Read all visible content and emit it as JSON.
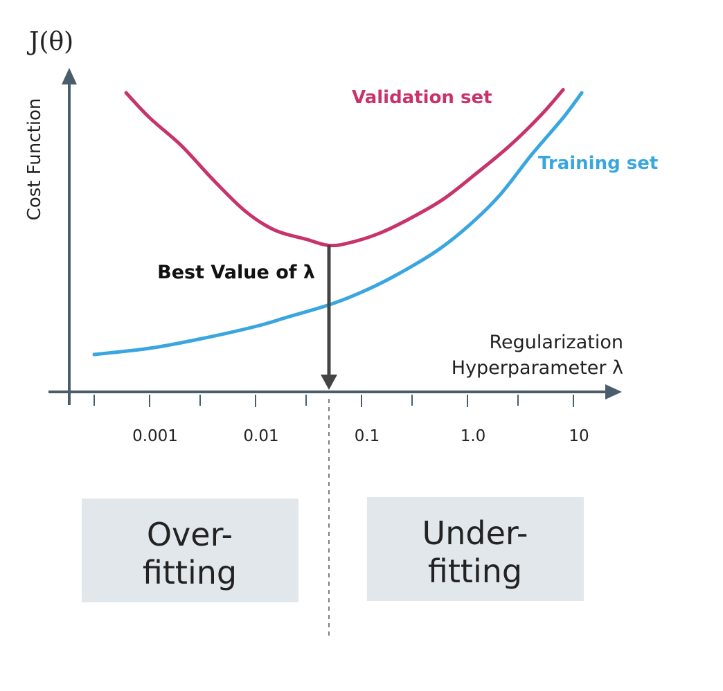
{
  "chart_data": {
    "type": "line",
    "y_symbol": "J(θ)",
    "ylabel": "Cost Function",
    "xlabel_lines": [
      "Regularization",
      "Hyperparameter λ"
    ],
    "x_scale": "log",
    "tick_labels": [
      "0.001",
      "0.01",
      "0.1",
      "1.0",
      "10"
    ],
    "tick_values": [
      0.001,
      0.01,
      0.1,
      1.0,
      10
    ],
    "series": [
      {
        "name": "Validation set",
        "color": "#c8336b",
        "x": [
          0.0006,
          0.001,
          0.002,
          0.004,
          0.008,
          0.015,
          0.03,
          0.05,
          0.08,
          0.15,
          0.3,
          0.6,
          1.2,
          2.5,
          5,
          8
        ],
        "y": [
          0.96,
          0.88,
          0.79,
          0.68,
          0.58,
          0.52,
          0.49,
          0.47,
          0.48,
          0.51,
          0.56,
          0.62,
          0.7,
          0.79,
          0.89,
          0.97
        ]
      },
      {
        "name": "Training set",
        "color": "#3aa6e0",
        "x": [
          0.0003,
          0.001,
          0.003,
          0.01,
          0.02,
          0.05,
          0.1,
          0.2,
          0.5,
          1.0,
          2.0,
          4.0,
          8.0,
          12.0
        ],
        "y": [
          0.12,
          0.14,
          0.17,
          0.21,
          0.24,
          0.28,
          0.32,
          0.37,
          0.45,
          0.53,
          0.63,
          0.76,
          0.88,
          0.96
        ]
      }
    ],
    "annotation": {
      "text": "Best Value of λ",
      "x": 0.05
    },
    "regions": [
      {
        "lines": [
          "Over-",
          "fitting"
        ]
      },
      {
        "lines": [
          "Under-",
          "fitting"
        ]
      }
    ]
  }
}
